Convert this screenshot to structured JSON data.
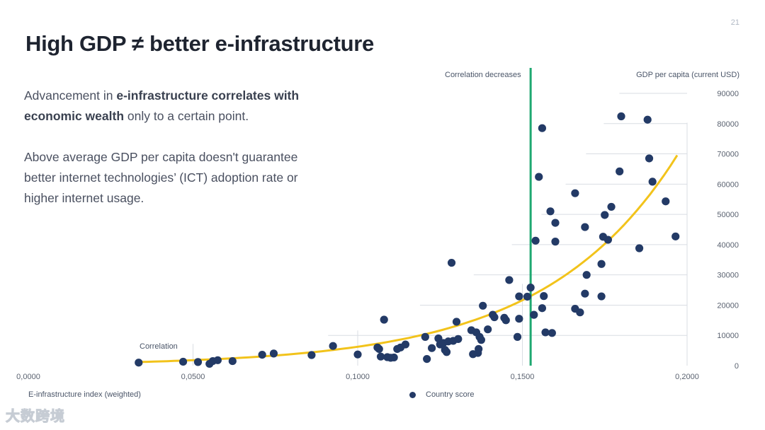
{
  "page": {
    "number": "21",
    "title": "High GDP ≠ better e-infrastructure",
    "paragraph1": {
      "before": "Advancement in ",
      "bold": "e-infrastructure correlates with economic wealth",
      "after": " only to a certain point."
    },
    "paragraph2": "Above average GDP per capita doesn't guarantee better internet technologies’ (ICT) adoption rate or higher internet usage.",
    "watermark": "大数跨境"
  },
  "chart_data": {
    "type": "scatter",
    "title": "",
    "xlabel": "E-infrastructure index (weighted)",
    "ylabel": "GDP per capita (current USD)",
    "xlim": [
      0,
      0.2
    ],
    "ylim": [
      0,
      90000
    ],
    "x_ticks": [
      "0,0000",
      "0,0500",
      "0,1000",
      "0,1500",
      "0,2000"
    ],
    "y_ticks": [
      "0",
      "10000",
      "20000",
      "30000",
      "40000",
      "50000",
      "60000",
      "70000",
      "80000",
      "90000"
    ],
    "legend": "Country score",
    "annotations": {
      "threshold_label": "Correlation decreases",
      "threshold_x": 0.1525,
      "correlation_label": "Correlation"
    },
    "colors": {
      "points": "#233a66",
      "trend": "#f2c31b",
      "threshold": "#1fa870",
      "grid": "#d9dde3"
    },
    "trend": {
      "a": 520,
      "b": 24.85,
      "x_start": 0.034,
      "x_end": 0.197
    },
    "series": [
      {
        "name": "Country score",
        "points": [
          [
            0.0335,
            1000
          ],
          [
            0.047,
            1300
          ],
          [
            0.0515,
            1200
          ],
          [
            0.055,
            600
          ],
          [
            0.056,
            1500
          ],
          [
            0.0575,
            1800
          ],
          [
            0.062,
            1500
          ],
          [
            0.071,
            3600
          ],
          [
            0.0745,
            4000
          ],
          [
            0.086,
            3500
          ],
          [
            0.0925,
            6500
          ],
          [
            0.1,
            3700
          ],
          [
            0.106,
            6000
          ],
          [
            0.1065,
            5500
          ],
          [
            0.107,
            3000
          ],
          [
            0.108,
            15200
          ],
          [
            0.109,
            2800
          ],
          [
            0.11,
            2600
          ],
          [
            0.111,
            2700
          ],
          [
            0.112,
            5500
          ],
          [
            0.113,
            6000
          ],
          [
            0.1145,
            7000
          ],
          [
            0.1205,
            9500
          ],
          [
            0.121,
            2200
          ],
          [
            0.1225,
            5800
          ],
          [
            0.1245,
            9000
          ],
          [
            0.125,
            7000
          ],
          [
            0.126,
            7500
          ],
          [
            0.1265,
            5200
          ],
          [
            0.127,
            4500
          ],
          [
            0.1275,
            8000
          ],
          [
            0.1285,
            34000
          ],
          [
            0.129,
            8200
          ],
          [
            0.13,
            14500
          ],
          [
            0.1305,
            8800
          ],
          [
            0.1345,
            11700
          ],
          [
            0.135,
            3800
          ],
          [
            0.136,
            11000
          ],
          [
            0.1365,
            4200
          ],
          [
            0.1367,
            5500
          ],
          [
            0.137,
            9500
          ],
          [
            0.1375,
            8500
          ],
          [
            0.138,
            19800
          ],
          [
            0.1395,
            12000
          ],
          [
            0.141,
            16800
          ],
          [
            0.1415,
            16000
          ],
          [
            0.1445,
            15800
          ],
          [
            0.145,
            15000
          ],
          [
            0.146,
            28300
          ],
          [
            0.1485,
            9500
          ],
          [
            0.149,
            15500
          ],
          [
            0.149,
            22900
          ],
          [
            0.1515,
            22800
          ],
          [
            0.1525,
            25800
          ],
          [
            0.1535,
            16800
          ],
          [
            0.154,
            41300
          ],
          [
            0.155,
            62400
          ],
          [
            0.156,
            78500
          ],
          [
            0.156,
            19000
          ],
          [
            0.1565,
            23000
          ],
          [
            0.157,
            11000
          ],
          [
            0.1585,
            51000
          ],
          [
            0.159,
            10800
          ],
          [
            0.16,
            47200
          ],
          [
            0.16,
            41000
          ],
          [
            0.166,
            57000
          ],
          [
            0.166,
            18800
          ],
          [
            0.1675,
            17600
          ],
          [
            0.169,
            45800
          ],
          [
            0.169,
            23800
          ],
          [
            0.1695,
            30000
          ],
          [
            0.174,
            22900
          ],
          [
            0.174,
            33600
          ],
          [
            0.1745,
            42600
          ],
          [
            0.175,
            49800
          ],
          [
            0.176,
            41600
          ],
          [
            0.177,
            52500
          ],
          [
            0.1795,
            64200
          ],
          [
            0.18,
            82400
          ],
          [
            0.1855,
            38800
          ],
          [
            0.188,
            81300
          ],
          [
            0.1885,
            68500
          ],
          [
            0.1895,
            60800
          ],
          [
            0.1935,
            54300
          ],
          [
            0.1965,
            42700
          ]
        ]
      }
    ]
  }
}
